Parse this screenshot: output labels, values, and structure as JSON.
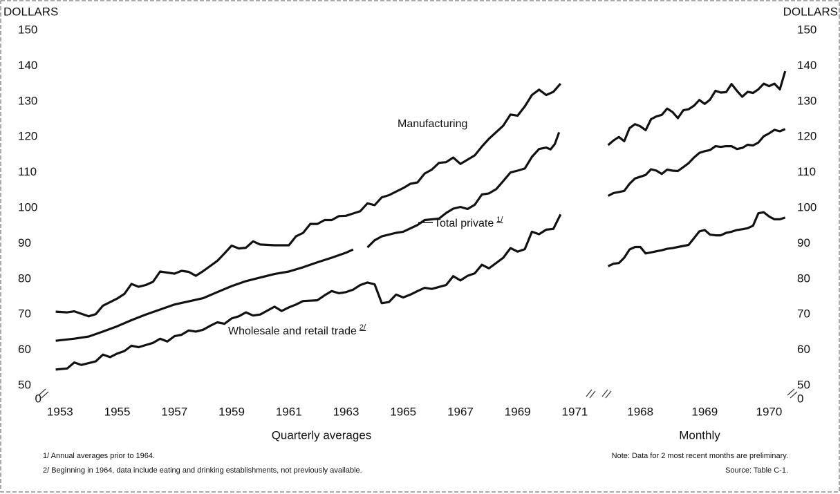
{
  "chart_data": [
    {
      "type": "line",
      "y_label": "DOLLARS",
      "x_label": "Quarterly averages",
      "y_break_label": "0",
      "ylim": [
        50,
        150
      ],
      "yticks": [
        50,
        60,
        70,
        80,
        90,
        100,
        110,
        120,
        130,
        140,
        150
      ],
      "xlim": [
        1952.4,
        1971.4
      ],
      "xticks": [
        1953,
        1955,
        1957,
        1959,
        1961,
        1963,
        1965,
        1967,
        1969,
        1971
      ],
      "series": [
        {
          "name": "Manufacturing",
          "color": "#111111",
          "x": [
            1952.85,
            1953.25,
            1953.5,
            1954.0,
            1954.25,
            1954.5,
            1955.0,
            1955.25,
            1955.5,
            1955.75,
            1956.0,
            1956.25,
            1956.5,
            1957.0,
            1957.25,
            1957.5,
            1957.75,
            1958.0,
            1958.5,
            1958.75,
            1959.0,
            1959.25,
            1959.5,
            1959.75,
            1960.0,
            1960.5,
            1961.0,
            1961.25,
            1961.5,
            1961.75,
            1962.0,
            1962.25,
            1962.5,
            1962.75,
            1963.0,
            1963.5,
            1963.75,
            1964.0,
            1964.25,
            1964.5,
            1965.0,
            1965.25,
            1965.5,
            1965.75,
            1966.0,
            1966.25,
            1966.5,
            1966.75,
            1967.0,
            1967.5,
            1967.75,
            1968.0,
            1968.5,
            1968.75,
            1969.0,
            1969.25,
            1969.5,
            1969.75,
            1970.0,
            1970.25,
            1970.5
          ],
          "values": [
            70.8,
            70.6,
            70.9,
            69.5,
            70.1,
            72.5,
            74.5,
            75.8,
            78.6,
            77.8,
            78.3,
            79.2,
            82.1,
            81.5,
            82.3,
            82.0,
            80.9,
            82.2,
            85.1,
            87.2,
            89.4,
            88.6,
            88.8,
            90.6,
            89.7,
            89.5,
            89.5,
            92.0,
            93.0,
            95.5,
            95.5,
            96.6,
            96.6,
            97.7,
            97.8,
            99.1,
            101.3,
            100.8,
            103.0,
            103.6,
            105.6,
            106.8,
            107.2,
            109.7,
            110.8,
            112.7,
            112.9,
            114.2,
            112.4,
            114.8,
            117.3,
            119.5,
            123.2,
            126.3,
            126.0,
            128.6,
            131.8,
            133.3,
            131.8,
            132.7,
            135.0
          ]
        },
        {
          "name": "Total private",
          "footnote": "1/",
          "color": "#111111",
          "x": [
            1952.85,
            1953.5,
            1954.0,
            1954.5,
            1955.0,
            1955.5,
            1956.0,
            1956.5,
            1957.0,
            1957.5,
            1958.0,
            1958.5,
            1959.0,
            1959.5,
            1960.0,
            1960.5,
            1961.0,
            1961.5,
            1962.0,
            1962.5,
            1963.0,
            1963.25,
            1963.5,
            1963.75,
            1964.0,
            1964.25,
            1964.75,
            1965.0,
            1965.5,
            1965.75,
            1966.25,
            1966.5,
            1966.75,
            1967.0,
            1967.25,
            1967.5,
            1967.75,
            1968.0,
            1968.25,
            1968.5,
            1968.75,
            1969.0,
            1969.25,
            1969.5,
            1969.75,
            1970.0,
            1970.15,
            1970.3,
            1970.45
          ],
          "values": [
            62.6,
            63.2,
            63.8,
            65.2,
            66.7,
            68.4,
            70.0,
            71.4,
            72.8,
            73.7,
            74.6,
            76.3,
            78.0,
            79.4,
            80.4,
            81.4,
            82.1,
            83.3,
            84.7,
            86.0,
            87.4,
            88.3,
            null,
            88.9,
            90.9,
            92.0,
            93.0,
            93.3,
            95.2,
            96.6,
            97.0,
            98.6,
            99.8,
            100.3,
            99.7,
            100.9,
            103.8,
            104.1,
            105.3,
            107.6,
            110.0,
            110.5,
            111.1,
            114.4,
            116.6,
            117.0,
            116.5,
            118.0,
            121.3
          ]
        },
        {
          "name": "Wholesale and retail trade",
          "footnote": "2/",
          "color": "#111111",
          "x": [
            1952.85,
            1953.25,
            1953.5,
            1953.75,
            1954.0,
            1954.25,
            1954.5,
            1954.75,
            1955.0,
            1955.25,
            1955.5,
            1955.75,
            1956.0,
            1956.25,
            1956.5,
            1956.75,
            1957.0,
            1957.25,
            1957.5,
            1957.75,
            1958.0,
            1958.25,
            1958.5,
            1958.75,
            1959.0,
            1959.25,
            1959.5,
            1959.75,
            1960.0,
            1960.5,
            1960.75,
            1961.0,
            1961.25,
            1961.5,
            1962.0,
            1962.25,
            1962.5,
            1962.75,
            1963.0,
            1963.25,
            1963.5,
            1963.75,
            1964.0,
            1964.25,
            1964.5,
            1964.75,
            1965.0,
            1965.25,
            1965.5,
            1965.75,
            1966.0,
            1966.5,
            1966.75,
            1967.0,
            1967.25,
            1967.5,
            1967.75,
            1968.0,
            1968.5,
            1968.75,
            1969.0,
            1969.25,
            1969.5,
            1969.75,
            1970.0,
            1970.25,
            1970.5
          ],
          "values": [
            54.5,
            54.8,
            56.5,
            55.8,
            56.3,
            56.8,
            58.7,
            58.0,
            59.0,
            59.7,
            61.2,
            60.8,
            61.4,
            62.0,
            63.2,
            62.4,
            63.9,
            64.3,
            65.5,
            65.2,
            65.7,
            66.8,
            67.8,
            67.4,
            68.9,
            69.5,
            70.6,
            69.7,
            70.0,
            72.2,
            71.0,
            72.0,
            72.8,
            73.8,
            74.0,
            75.4,
            76.6,
            76.0,
            76.3,
            77.0,
            78.3,
            79.0,
            78.5,
            73.2,
            73.5,
            75.6,
            74.8,
            75.6,
            76.6,
            77.5,
            77.2,
            78.3,
            80.8,
            79.6,
            80.9,
            81.6,
            84.0,
            83.0,
            86.0,
            88.7,
            87.7,
            88.4,
            93.3,
            92.6,
            93.9,
            94.1,
            98.2
          ]
        }
      ],
      "footnotes": [
        "1/ Annual averages prior to 1964.",
        "2/ Beginning in 1964, data include eating and drinking establishments, not previously available."
      ]
    },
    {
      "type": "line",
      "y_label": "DOLLARS",
      "x_label": "Monthly",
      "y_break_label": "0",
      "ylim": [
        50,
        150
      ],
      "yticks": [
        50,
        60,
        70,
        80,
        90,
        100,
        110,
        120,
        130,
        140,
        150
      ],
      "xlim": [
        1967.8,
        1971.0
      ],
      "xticks": [
        {
          "value": 1968.5,
          "label": "1968"
        },
        {
          "value": 1969.5,
          "label": "1969"
        },
        {
          "value": 1970.5,
          "label": "1970"
        }
      ],
      "x": [
        1968.0,
        1968.083,
        1968.167,
        1968.25,
        1968.333,
        1968.417,
        1968.5,
        1968.583,
        1968.667,
        1968.75,
        1968.833,
        1968.917,
        1969.0,
        1969.083,
        1969.167,
        1969.25,
        1969.333,
        1969.417,
        1969.5,
        1969.583,
        1969.667,
        1969.75,
        1969.833,
        1969.917,
        1970.0,
        1970.083,
        1970.167,
        1970.25,
        1970.333,
        1970.417,
        1970.5,
        1970.583,
        1970.667,
        1970.75
      ],
      "series": [
        {
          "color": "#111111",
          "values": [
            117.7,
            119.0,
            120.0,
            118.8,
            122.5,
            123.6,
            123.0,
            121.9,
            125.0,
            125.8,
            126.2,
            128.0,
            127.0,
            125.3,
            127.5,
            127.8,
            128.8,
            130.4,
            129.3,
            130.5,
            133.0,
            132.5,
            132.6,
            134.9,
            133.0,
            131.3,
            132.7,
            132.4,
            133.4,
            135.0,
            134.3,
            135.0,
            133.4,
            138.5
          ]
        },
        {
          "color": "#111111",
          "values": [
            103.4,
            104.2,
            104.5,
            104.8,
            106.8,
            108.3,
            108.8,
            109.3,
            110.9,
            110.5,
            109.6,
            110.8,
            110.5,
            110.4,
            111.5,
            112.6,
            114.2,
            115.5,
            116.0,
            116.3,
            117.4,
            117.2,
            117.4,
            117.4,
            116.6,
            116.9,
            117.8,
            117.6,
            118.4,
            120.2,
            121.0,
            122.0,
            121.6,
            122.2
          ]
        },
        {
          "color": "#111111",
          "values": [
            83.6,
            84.3,
            84.5,
            86.0,
            88.3,
            89.0,
            89.0,
            87.2,
            87.5,
            87.8,
            88.1,
            88.5,
            88.7,
            89.0,
            89.3,
            89.6,
            91.5,
            93.4,
            93.8,
            92.5,
            92.3,
            92.3,
            93.0,
            93.3,
            93.8,
            94.0,
            94.3,
            95.0,
            98.5,
            98.8,
            97.6,
            96.8,
            96.8,
            97.3
          ]
        }
      ],
      "footnotes": [
        "Note: Data for 2 most recent months are preliminary.",
        "Source: Table C-1."
      ]
    }
  ]
}
